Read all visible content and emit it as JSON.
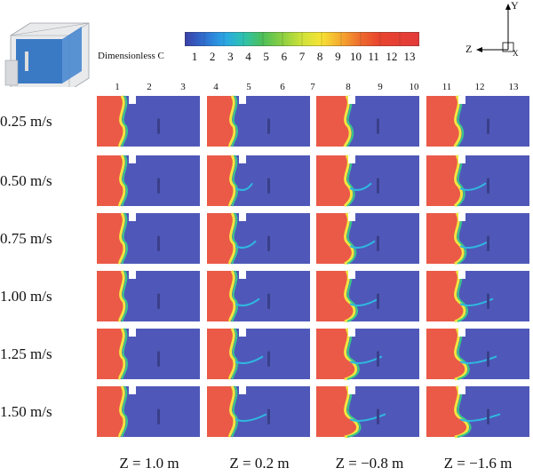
{
  "colorbar": {
    "title": "Dimensionless C",
    "ticks": [
      "1",
      "2",
      "3",
      "4",
      "5",
      "6",
      "7",
      "8",
      "9",
      "10",
      "11",
      "12",
      "13"
    ],
    "colors": [
      "#3b40a6",
      "#2f6dd0",
      "#2aa6e6",
      "#2ec2b0",
      "#4cbf5a",
      "#8fd040",
      "#cfe23a",
      "#f6e335",
      "#f5a62e",
      "#ee6b2e",
      "#e8442e",
      "#e43232",
      "#e33a3a"
    ]
  },
  "axes": {
    "y": "Y",
    "z": "Z",
    "x": "X"
  },
  "column_numbers": [
    "1",
    "2",
    "3",
    "4",
    "5",
    "6",
    "7",
    "8",
    "9",
    "10",
    "11",
    "12",
    "13"
  ],
  "rows": [
    "0.25 m/s",
    "0.50 m/s",
    "0.75 m/s",
    "1.00 m/s",
    "1.25 m/s",
    "1.50 m/s"
  ],
  "planes": [
    "Z = 1.0 m",
    "Z = 0.2 m",
    "Z = −0.8 m",
    "Z = −1.6 m"
  ],
  "palette": {
    "background": "#4f58b8",
    "high": "#ea5a47",
    "front_yellow": "#f1e640",
    "front_green": "#39c88a",
    "front_cyan": "#2fb8e0",
    "vent": "#ffffff"
  }
}
